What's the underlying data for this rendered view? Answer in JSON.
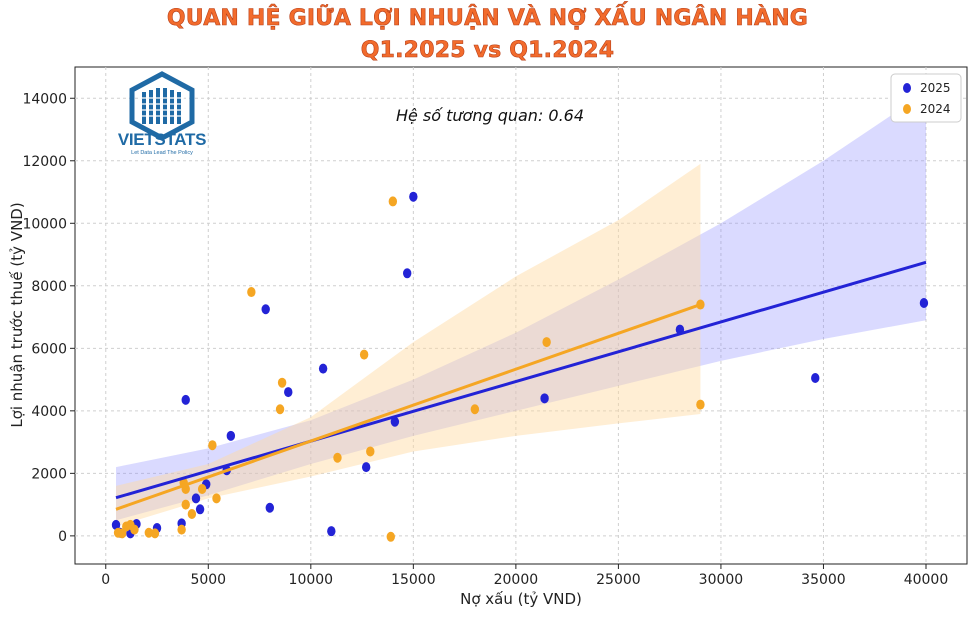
{
  "title_line1": "QUAN HỆ GIỮA LỢI NHUẬN VÀ NỢ XẤU NGÂN HÀNG",
  "title_line2": "Q1.2025 vs Q1.2024",
  "logo": {
    "name": "VIETSTATS",
    "tagline": "Let Data Lead The Policy",
    "color": "#1f6aa5"
  },
  "chart_data": {
    "type": "scatter",
    "title": "QUAN HỆ GIỮA LỢI NHUẬN VÀ NỢ XẤU NGÂN HÀNG Q1.2025 vs Q1.2024",
    "xlabel": "Nợ xấu (tỷ VND)",
    "ylabel": "Lợi nhuận trước thuế (tỷ VND)",
    "xlim": [
      -1500,
      42000
    ],
    "ylim": [
      -900,
      15000
    ],
    "xticks": [
      0,
      5000,
      10000,
      15000,
      20000,
      25000,
      30000,
      35000,
      40000
    ],
    "yticks": [
      0,
      2000,
      4000,
      6000,
      8000,
      10000,
      12000,
      14000
    ],
    "grid": true,
    "legend_position": "top-right",
    "annotation": "Hệ số tương quan: 0.64",
    "series": [
      {
        "name": "2025",
        "color": "#2323d6",
        "points": [
          [
            500,
            350
          ],
          [
            700,
            100
          ],
          [
            1200,
            80
          ],
          [
            1300,
            300
          ],
          [
            1500,
            380
          ],
          [
            2500,
            250
          ],
          [
            3700,
            400
          ],
          [
            3900,
            4350
          ],
          [
            4400,
            1200
          ],
          [
            4600,
            850
          ],
          [
            4900,
            1650
          ],
          [
            5900,
            2100
          ],
          [
            6100,
            3200
          ],
          [
            7800,
            7250
          ],
          [
            8000,
            900
          ],
          [
            8900,
            4600
          ],
          [
            10600,
            5350
          ],
          [
            11000,
            150
          ],
          [
            12700,
            2200
          ],
          [
            14100,
            3650
          ],
          [
            14700,
            8400
          ],
          [
            15000,
            10850
          ],
          [
            21400,
            4400
          ],
          [
            28000,
            6600
          ],
          [
            34600,
            5050
          ],
          [
            39900,
            7450
          ]
        ],
        "trend": {
          "x": [
            500,
            40000
          ],
          "y": [
            1220,
            8750
          ]
        },
        "band": {
          "x": [
            500,
            5000,
            10000,
            15000,
            20000,
            25000,
            30000,
            35000,
            40000
          ],
          "upper": [
            2200,
            2800,
            3700,
            5000,
            6500,
            8200,
            10000,
            12000,
            14200
          ],
          "lower": [
            500,
            1300,
            2300,
            3200,
            4000,
            4800,
            5600,
            6300,
            6900
          ]
        }
      },
      {
        "name": "2024",
        "color": "#f5a623",
        "points": [
          [
            600,
            100
          ],
          [
            800,
            80
          ],
          [
            1000,
            300
          ],
          [
            1200,
            350
          ],
          [
            1400,
            200
          ],
          [
            2100,
            100
          ],
          [
            2400,
            80
          ],
          [
            3700,
            200
          ],
          [
            3800,
            1700
          ],
          [
            3900,
            1500
          ],
          [
            3900,
            1000
          ],
          [
            4200,
            700
          ],
          [
            4700,
            1500
          ],
          [
            5200,
            2900
          ],
          [
            5400,
            1200
          ],
          [
            7100,
            7800
          ],
          [
            8600,
            4900
          ],
          [
            8500,
            4050
          ],
          [
            11300,
            2500
          ],
          [
            12600,
            5800
          ],
          [
            12900,
            2700
          ],
          [
            13900,
            -30
          ],
          [
            14000,
            10700
          ],
          [
            18000,
            4050
          ],
          [
            21500,
            6200
          ],
          [
            29000,
            7400
          ],
          [
            29000,
            4200
          ]
        ],
        "trend": {
          "x": [
            500,
            29000
          ],
          "y": [
            850,
            7400
          ]
        },
        "band": {
          "x": [
            500,
            5000,
            10000,
            15000,
            20000,
            25000,
            29000
          ],
          "upper": [
            1600,
            2300,
            3800,
            6200,
            8300,
            10100,
            11900
          ],
          "lower": [
            300,
            1200,
            1900,
            2700,
            3200,
            3600,
            3900
          ]
        }
      }
    ]
  }
}
